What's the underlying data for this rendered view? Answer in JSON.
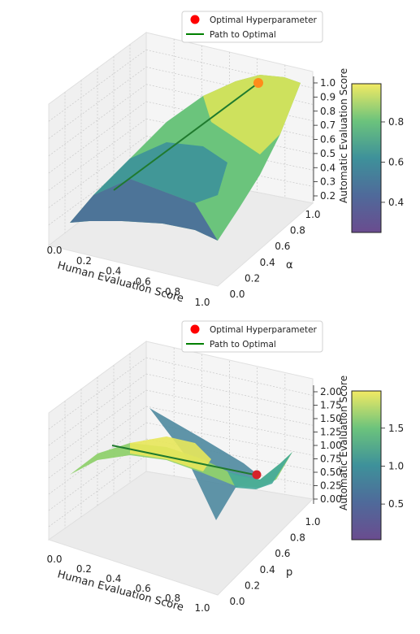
{
  "chart_data": [
    {
      "type": "surface3d",
      "xlabel": "Human Evaluation Score",
      "ylabel": "α",
      "zlabel": "Automatic Evaluation Score",
      "x_ticks": [
        "0.0",
        "0.2",
        "0.4",
        "0.6",
        "0.8",
        "1.0"
      ],
      "y_ticks": [
        "0.0",
        "0.2",
        "0.4",
        "0.6",
        "0.8",
        "1.0"
      ],
      "z_ticks": [
        "0.2",
        "0.3",
        "0.4",
        "0.5",
        "0.6",
        "0.7",
        "0.8",
        "0.9",
        "1.0"
      ],
      "colorbar_ticks": [
        "0.4",
        "0.6",
        "0.8"
      ],
      "colormap": "viridis",
      "legend": {
        "placement": "top",
        "optimal_label": "Optimal Hyperparameter",
        "path_label": "Path to Optimal"
      },
      "optimal_point": {
        "x": 1.0,
        "y": 1.0,
        "z": 1.0
      },
      "path": [
        {
          "x": 0.25,
          "y": 0.25,
          "z": 0.45
        },
        {
          "x": 1.0,
          "y": 1.0,
          "z": 1.0
        }
      ]
    },
    {
      "type": "surface3d",
      "xlabel": "Human Evaluation Score",
      "ylabel": "p",
      "zlabel": "Automatic Evaluation Score",
      "x_ticks": [
        "0.0",
        "0.2",
        "0.4",
        "0.6",
        "0.8",
        "1.0"
      ],
      "y_ticks": [
        "0.0",
        "0.2",
        "0.4",
        "0.6",
        "0.8",
        "1.0"
      ],
      "z_ticks": [
        "0.00",
        "0.25",
        "0.50",
        "0.75",
        "1.00",
        "1.25",
        "1.50",
        "1.75",
        "2.00"
      ],
      "colorbar_ticks": [
        "0.5",
        "1.0",
        "1.5"
      ],
      "colormap": "viridis",
      "legend": {
        "placement": "top",
        "optimal_label": "Optimal Hyperparameter",
        "path_label": "Path to Optimal"
      },
      "optimal_point": {
        "x": 1.0,
        "y": 0.5,
        "z": 0.5
      },
      "path": [
        {
          "x": 0.0,
          "y": 0.5,
          "z": 1.0
        },
        {
          "x": 1.0,
          "y": 0.5,
          "z": 0.5
        }
      ]
    }
  ],
  "colors": {
    "optimal_marker": "#ff0000",
    "path_line": "#008000",
    "pane": "#f2f2f2",
    "grid": "#c8c8c8"
  }
}
